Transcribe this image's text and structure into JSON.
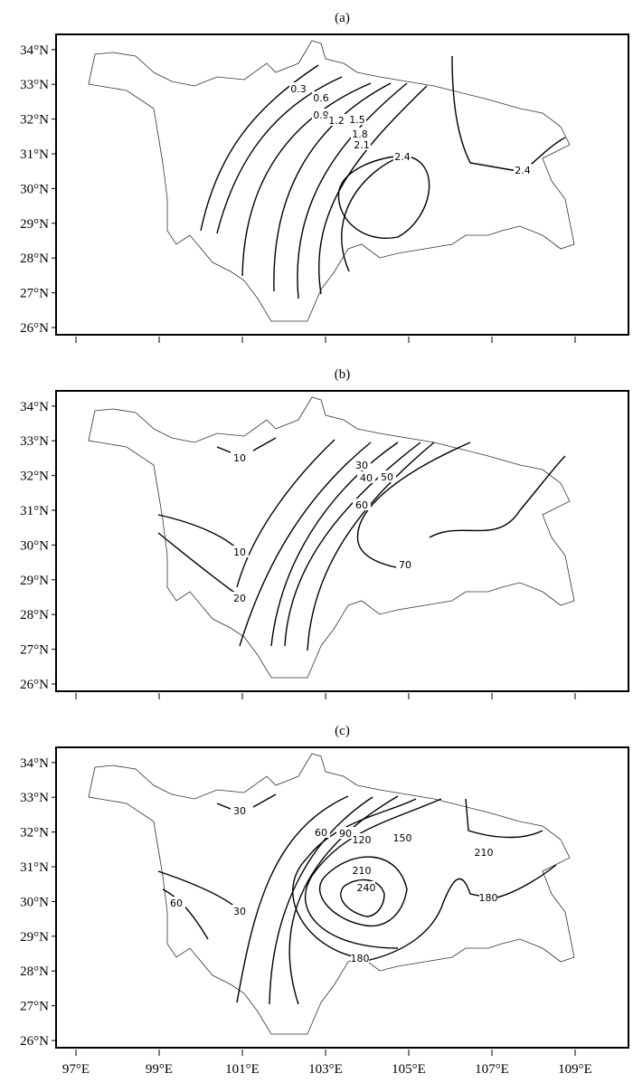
{
  "panels": [
    {
      "label": "(a)",
      "contour_labels": [
        "0.3",
        "0.6",
        "0.9",
        "1.2",
        "1.5",
        "1.8",
        "2.1",
        "2.4",
        "2.4"
      ]
    },
    {
      "label": "(b)",
      "contour_labels": [
        "10",
        "10",
        "20",
        "30",
        "40",
        "50",
        "60",
        "70"
      ]
    },
    {
      "label": "(c)",
      "contour_labels": [
        "30",
        "30",
        "60",
        "60",
        "90",
        "120",
        "150",
        "210",
        "210",
        "240",
        "180",
        "180"
      ]
    }
  ],
  "lat_ticks": [
    {
      "value": 34,
      "label": "34°N"
    },
    {
      "value": 33,
      "label": "33°N"
    },
    {
      "value": 32,
      "label": "32°N"
    },
    {
      "value": 31,
      "label": "31°N"
    },
    {
      "value": 30,
      "label": "30°N"
    },
    {
      "value": 29,
      "label": "29°N"
    },
    {
      "value": 28,
      "label": "28°N"
    },
    {
      "value": 27,
      "label": "27°N"
    },
    {
      "value": 26,
      "label": "26°N"
    }
  ],
  "lon_ticks": [
    {
      "value": 97,
      "label": "97°E"
    },
    {
      "value": 99,
      "label": "99°E"
    },
    {
      "value": 101,
      "label": "101°E"
    },
    {
      "value": 103,
      "label": "103°E"
    },
    {
      "value": 105,
      "label": "105°E"
    },
    {
      "value": 107,
      "label": "107°E"
    },
    {
      "value": 109,
      "label": "109°E"
    }
  ]
}
